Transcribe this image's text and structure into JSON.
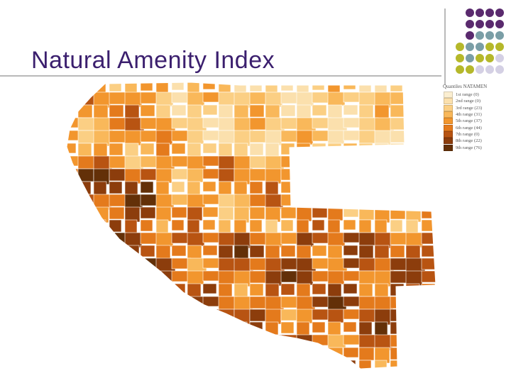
{
  "slide": {
    "title": "Natural Amenity Index"
  },
  "legend": {
    "title": "Quantiles NATAMEN",
    "items": [
      {
        "label": "1st range (0)",
        "color": "#fbeed0"
      },
      {
        "label": "2nd range (0)",
        "color": "#fbe0ad"
      },
      {
        "label": "3rd range (23)",
        "color": "#fbcf84"
      },
      {
        "label": "4th range (31)",
        "color": "#f9b85a"
      },
      {
        "label": "5th range (37)",
        "color": "#f2962e"
      },
      {
        "label": "6th range (44)",
        "color": "#e47a1c"
      },
      {
        "label": "7th range (0)",
        "color": "#b85412"
      },
      {
        "label": "8th range (22)",
        "color": "#8c3d0c"
      },
      {
        "label": "9th range (76)",
        "color": "#633008"
      }
    ]
  },
  "decor_dot_colors": [
    "#5a2a6e",
    "#7a9ea6",
    "#b5b82a",
    "#d4d0e4"
  ]
}
